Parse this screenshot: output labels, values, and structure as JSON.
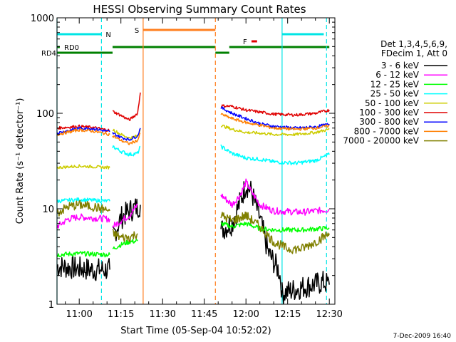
{
  "chart_data": {
    "type": "line",
    "title": "HESSI Observing Summary Count Rates",
    "xlabel": "Start Time (05-Sep-04 10:52:02)",
    "ylabel": "Count Rate (s⁻¹ detector⁻¹)",
    "y_scale": "log",
    "ylim": [
      1,
      1000
    ],
    "xlim": [
      "10:52",
      "12:32"
    ],
    "x_tick_labels": [
      "11:00",
      "11:15",
      "11:30",
      "11:45",
      "12:00",
      "12:15",
      "12:30"
    ],
    "y_tick_labels": [
      "1",
      "10",
      "100",
      "1000"
    ],
    "grid": false,
    "legend_position": "right",
    "legend_header": [
      "Det 1,3,4,5,6,9,",
      "FDecim 1, Att 0"
    ],
    "timestamp": "7-Dec-2009 16:40",
    "flags": [
      {
        "label": "N",
        "color": "#00e5e5",
        "start": "10:52",
        "end": "11:08"
      },
      {
        "label": "N",
        "color": "#00e5e5",
        "start": "12:13",
        "end": "12:28"
      },
      {
        "label": "S",
        "color": "#ff7f1f",
        "start": "11:23",
        "end": "11:49"
      },
      {
        "label": "F",
        "color": "#e00000",
        "start": "12:02",
        "end": "12:04"
      },
      {
        "label": "RD0",
        "color": "#008000",
        "start": "10:52",
        "end": "10:53"
      },
      {
        "label": "RD4",
        "color": "#008000",
        "start": "10:52",
        "end": "11:12"
      }
    ],
    "markers": [
      {
        "label": "night",
        "color": "#00e5e5",
        "style": "solid",
        "time": "10:52"
      },
      {
        "label": "night",
        "color": "#00e5e5",
        "style": "dashed",
        "time": "11:08"
      },
      {
        "label": "night",
        "color": "#00e5e5",
        "style": "solid",
        "time": "12:13"
      },
      {
        "label": "night",
        "color": "#00e5e5",
        "style": "dashed",
        "time": "12:29"
      },
      {
        "label": "saa",
        "color": "#ff7f1f",
        "style": "solid",
        "time": "11:23"
      },
      {
        "label": "saa",
        "color": "#ff7f1f",
        "style": "dashed",
        "time": "11:49"
      }
    ],
    "series": [
      {
        "name": "3 - 6 keV",
        "color": "#000000",
        "noise": 0.25,
        "segments": [
          [
            [
              "10:52",
              2.5
            ],
            [
              "10:58",
              2.4
            ],
            [
              "11:05",
              2.3
            ],
            [
              "11:11",
              2.3
            ]
          ],
          [
            [
              "11:12",
              5
            ],
            [
              "11:15",
              8
            ],
            [
              "11:18",
              9.5
            ],
            [
              "11:21",
              10.5
            ],
            [
              "11:22",
              11
            ]
          ],
          [
            [
              "11:51",
              6
            ],
            [
              "11:55",
              7
            ],
            [
              "11:58",
              12
            ],
            [
              "12:00",
              18
            ],
            [
              "12:02",
              15
            ],
            [
              "12:05",
              8
            ],
            [
              "12:08",
              3.5
            ],
            [
              "12:12",
              2.2
            ],
            [
              "12:13",
              1.4
            ]
          ],
          [
            [
              "12:13",
              1.3
            ],
            [
              "12:20",
              1.5
            ],
            [
              "12:28",
              1.7
            ],
            [
              "12:30",
              1.6
            ]
          ]
        ]
      },
      {
        "name": "6 - 12 keV",
        "color": "#ff00ff",
        "noise": 0.07,
        "segments": [
          [
            [
              "10:52",
              6.5
            ],
            [
              "10:56",
              7.8
            ],
            [
              "11:00",
              8.2
            ],
            [
              "11:05",
              8.0
            ],
            [
              "11:11",
              7.8
            ]
          ],
          [
            [
              "11:12",
              6.5
            ],
            [
              "11:15",
              7.5
            ],
            [
              "11:18",
              8.5
            ],
            [
              "11:21",
              11
            ]
          ],
          [
            [
              "11:51",
              14
            ],
            [
              "11:55",
              11
            ],
            [
              "11:58",
              14
            ],
            [
              "12:00",
              19
            ],
            [
              "12:02",
              15
            ],
            [
              "12:05",
              11
            ],
            [
              "12:10",
              9.5
            ],
            [
              "12:20",
              9.2
            ],
            [
              "12:30",
              9.8
            ]
          ]
        ]
      },
      {
        "name": "12 - 25 keV",
        "color": "#00ff00",
        "noise": 0.05,
        "segments": [
          [
            [
              "10:52",
              3.3
            ],
            [
              "11:00",
              3.4
            ],
            [
              "11:11",
              3.3
            ]
          ],
          [
            [
              "11:12",
              3.8
            ],
            [
              "11:15",
              4.2
            ],
            [
              "11:18",
              4.5
            ],
            [
              "11:21",
              4.6
            ]
          ],
          [
            [
              "11:51",
              7
            ],
            [
              "11:55",
              6.5
            ],
            [
              "12:00",
              7
            ],
            [
              "12:05",
              6.2
            ],
            [
              "12:10",
              6.0
            ],
            [
              "12:20",
              6.0
            ],
            [
              "12:30",
              6.3
            ]
          ]
        ]
      },
      {
        "name": "25 - 50 keV",
        "color": "#00ffff",
        "noise": 0.04,
        "segments": [
          [
            [
              "10:52",
              12
            ],
            [
              "11:00",
              12.5
            ],
            [
              "11:11",
              12
            ]
          ],
          [
            [
              "11:12",
              45
            ],
            [
              "11:15",
              40
            ],
            [
              "11:18",
              37
            ],
            [
              "11:21",
              38
            ],
            [
              "11:22",
              45
            ]
          ],
          [
            [
              "11:51",
              45
            ],
            [
              "11:55",
              38
            ],
            [
              "12:00",
              34
            ],
            [
              "12:05",
              33
            ],
            [
              "12:10",
              31
            ],
            [
              "12:18",
              30
            ],
            [
              "12:25",
              32
            ],
            [
              "12:30",
              37
            ]
          ]
        ]
      },
      {
        "name": "50 - 100 keV",
        "color": "#cccc00",
        "noise": 0.03,
        "segments": [
          [
            [
              "10:52",
              27
            ],
            [
              "11:00",
              28
            ],
            [
              "11:11",
              27
            ]
          ],
          [
            [
              "11:12",
              68
            ],
            [
              "11:15",
              60
            ],
            [
              "11:18",
              55
            ],
            [
              "11:21",
              58
            ],
            [
              "11:22",
              68
            ]
          ],
          [
            [
              "11:51",
              75
            ],
            [
              "11:55",
              68
            ],
            [
              "12:00",
              63
            ],
            [
              "12:05",
              62
            ],
            [
              "12:10",
              60
            ],
            [
              "12:18",
              60
            ],
            [
              "12:25",
              63
            ],
            [
              "12:30",
              68
            ]
          ]
        ]
      },
      {
        "name": "100 - 300 keV",
        "color": "#e00000",
        "noise": 0.03,
        "segments": [
          [
            [
              "10:52",
              70
            ],
            [
              "11:00",
              73
            ],
            [
              "11:05",
              71
            ],
            [
              "11:11",
              66
            ]
          ],
          [
            [
              "11:12",
              105
            ],
            [
              "11:15",
              95
            ],
            [
              "11:18",
              85
            ],
            [
              "11:21",
              100
            ],
            [
              "11:22",
              165
            ]
          ],
          [
            [
              "11:51",
              120
            ],
            [
              "11:55",
              118
            ],
            [
              "12:00",
              108
            ],
            [
              "12:05",
              103
            ],
            [
              "12:10",
              98
            ],
            [
              "12:18",
              96
            ],
            [
              "12:25",
              100
            ],
            [
              "12:30",
              108
            ]
          ]
        ]
      },
      {
        "name": "300 - 800 keV",
        "color": "#0000ff",
        "noise": 0.03,
        "segments": [
          [
            [
              "10:52",
              62
            ],
            [
              "11:00",
              70
            ],
            [
              "11:05",
              69
            ],
            [
              "11:11",
              64
            ]
          ],
          [
            [
              "11:12",
              62
            ],
            [
              "11:15",
              56
            ],
            [
              "11:18",
              53
            ],
            [
              "11:21",
              58
            ],
            [
              "11:22",
              70
            ]
          ],
          [
            [
              "11:51",
              115
            ],
            [
              "11:55",
              100
            ],
            [
              "12:00",
              88
            ],
            [
              "12:05",
              78
            ],
            [
              "12:10",
              73
            ],
            [
              "12:18",
              70
            ],
            [
              "12:25",
              72
            ],
            [
              "12:30",
              77
            ]
          ]
        ]
      },
      {
        "name": "800 - 7000 keV",
        "color": "#ff7f00",
        "noise": 0.03,
        "segments": [
          [
            [
              "10:52",
              60
            ],
            [
              "11:00",
              67
            ],
            [
              "11:05",
              65
            ],
            [
              "11:11",
              60
            ]
          ],
          [
            [
              "11:12",
              58
            ],
            [
              "11:15",
              52
            ],
            [
              "11:18",
              48
            ],
            [
              "11:21",
              52
            ],
            [
              "11:22",
              62
            ]
          ],
          [
            [
              "11:51",
              98
            ],
            [
              "11:55",
              88
            ],
            [
              "12:00",
              80
            ],
            [
              "12:05",
              75
            ],
            [
              "12:10",
              70
            ],
            [
              "12:18",
              68
            ],
            [
              "12:25",
              70
            ],
            [
              "12:30",
              74
            ]
          ]
        ]
      },
      {
        "name": "7000 - 20000 keV",
        "color": "#808000",
        "noise": 0.1,
        "segments": [
          [
            [
              "10:52",
              9
            ],
            [
              "10:56",
              10.5
            ],
            [
              "11:00",
              11
            ],
            [
              "11:05",
              10.5
            ],
            [
              "11:11",
              9.5
            ]
          ],
          [
            [
              "11:12",
              5.5
            ],
            [
              "11:15",
              5.0
            ],
            [
              "11:18",
              5.0
            ],
            [
              "11:21",
              5.5
            ]
          ],
          [
            [
              "11:51",
              8.5
            ],
            [
              "11:55",
              7.5
            ],
            [
              "12:00",
              8.5
            ],
            [
              "12:05",
              6.5
            ],
            [
              "12:10",
              4.5
            ],
            [
              "12:15",
              3.8
            ],
            [
              "12:20",
              3.8
            ],
            [
              "12:25",
              4.5
            ],
            [
              "12:30",
              5.5
            ]
          ]
        ]
      }
    ]
  }
}
